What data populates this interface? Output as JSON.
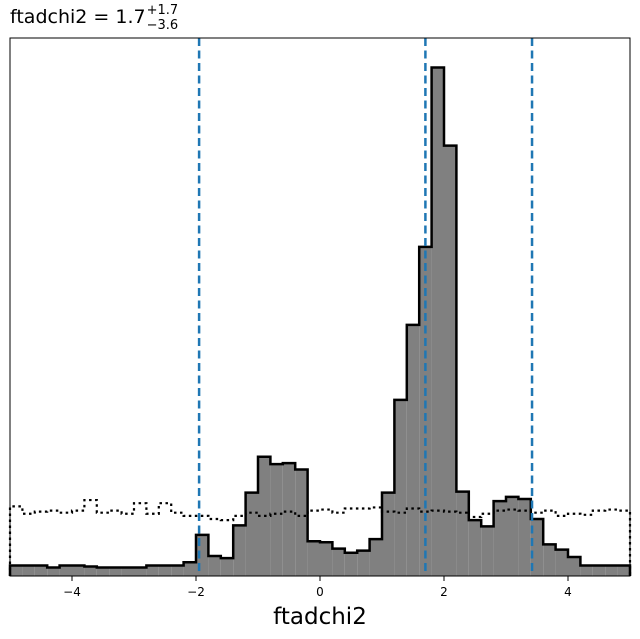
{
  "title": {
    "param": "ftadchi2",
    "median": "1.7",
    "upper": "+1.7",
    "lower": "−3.6"
  },
  "colors": {
    "hist_fill": "#808080",
    "hist_edge": "#000000",
    "quantile_line": "#1f77b4",
    "prior_line": "#000000"
  },
  "chart_data": {
    "type": "histogram",
    "xlabel": "ftadchi2",
    "ylabel": "",
    "xlim": [
      -5,
      5
    ],
    "ylim": [
      0,
      102
    ],
    "xticks": [
      -4,
      -2,
      0,
      2,
      4
    ],
    "xtick_labels": [
      "−4",
      "−2",
      "0",
      "2",
      "4"
    ],
    "yticks": [],
    "grid": false,
    "bin_edges": [
      -5.0,
      -4.8,
      -4.6,
      -4.4,
      -4.2,
      -4.0,
      -3.8,
      -3.6,
      -3.4,
      -3.2,
      -3.0,
      -2.8,
      -2.6,
      -2.4,
      -2.2,
      -2.0,
      -1.8,
      -1.6,
      -1.4,
      -1.2,
      -1.0,
      -0.8,
      -0.6,
      -0.4,
      -0.2,
      0.0,
      0.2,
      0.4,
      0.6,
      0.8,
      1.0,
      1.2,
      1.4,
      1.6,
      1.8,
      2.0,
      2.2,
      2.4,
      2.6,
      2.8,
      3.0,
      3.2,
      3.4,
      3.6,
      3.8,
      4.0,
      4.2,
      4.4,
      4.6,
      4.8,
      5.0
    ],
    "posterior_counts": [
      2,
      2,
      2,
      1.6,
      2,
      2,
      1.8,
      1.6,
      1.6,
      1.6,
      1.6,
      2,
      2,
      2,
      2.6,
      7.8,
      3.8,
      3.4,
      9.6,
      15.8,
      22.6,
      21.2,
      21.4,
      20.2,
      6.6,
      6.4,
      5.2,
      4.4,
      4.8,
      7,
      15.8,
      33.4,
      47.6,
      62.4,
      96.4,
      81.6,
      16,
      10.6,
      9.4,
      14.2,
      15,
      14.6,
      10.8,
      6,
      5,
      3.6,
      2,
      2,
      2,
      2
    ],
    "prior_line_style": "dotted",
    "prior_counts": [
      13.2,
      11.8,
      12.2,
      12.4,
      12.0,
      12.4,
      14.4,
      12.0,
      12.4,
      11.8,
      13.8,
      11.8,
      13.8,
      12.0,
      11.4,
      11.4,
      10.8,
      10.6,
      11.4,
      12.0,
      11.4,
      11.8,
      12.2,
      11.4,
      12.4,
      12.6,
      12.0,
      12.8,
      12.8,
      13.0,
      12.2,
      12.0,
      12.8,
      12.2,
      12.4,
      12.2,
      12.0,
      11.2,
      11.8,
      12.4,
      12.6,
      12.4,
      12.0,
      12.4,
      11.4,
      11.8,
      11.6,
      12.4,
      12.6,
      12.4
    ],
    "quantile_lines": [
      -1.95,
      1.7,
      3.42
    ],
    "quantile_line_style": "dashed"
  }
}
